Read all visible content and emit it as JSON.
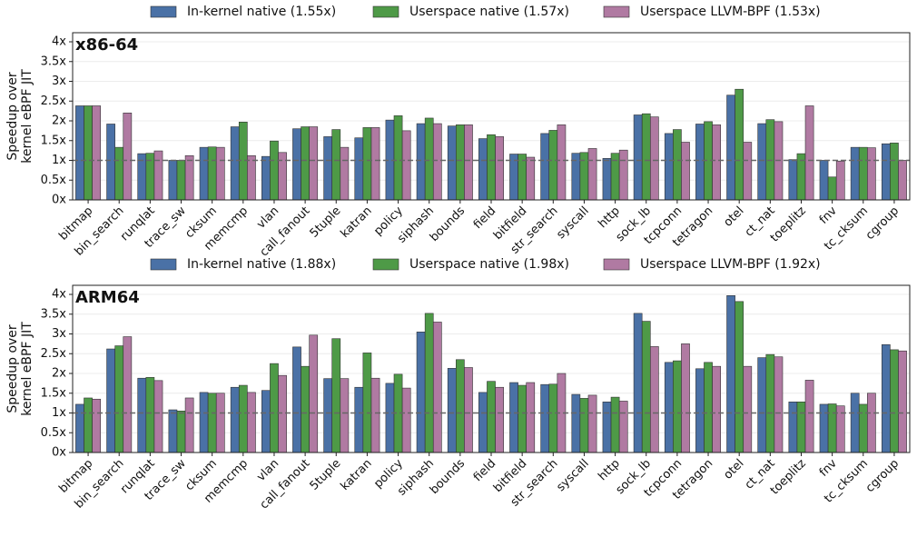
{
  "chart_data": [
    {
      "type": "bar",
      "title": "x86-64",
      "ylabel": [
        "Speedup over",
        "kernel eBPF JIT"
      ],
      "categories": [
        "bitmap",
        "bin_search",
        "runqlat",
        "trace_sw",
        "cksum",
        "memcmp",
        "vlan",
        "call_fanout",
        "5tuple",
        "katran",
        "policy",
        "siphash",
        "bounds",
        "field",
        "bitfield",
        "str_search",
        "syscall",
        "http",
        "sock_lb",
        "tcpconn",
        "tetragon",
        "otel",
        "ct_nat",
        "toeplitz",
        "fnv",
        "tc_cksum",
        "cgroup"
      ],
      "series": [
        {
          "name": "In-kernel native (1.55x)",
          "color": "#4a71a6",
          "values": [
            2.38,
            1.92,
            1.17,
            1.0,
            1.33,
            1.85,
            1.1,
            1.8,
            1.6,
            1.57,
            2.02,
            1.93,
            1.87,
            1.55,
            1.16,
            1.68,
            1.18,
            1.05,
            2.15,
            1.68,
            1.92,
            2.65,
            1.93,
            1.02,
            1.0,
            1.33,
            1.42
          ]
        },
        {
          "name": "Userspace native (1.57x)",
          "color": "#4e9a47",
          "values": [
            2.38,
            1.33,
            1.18,
            1.0,
            1.34,
            1.97,
            1.49,
            1.85,
            1.78,
            1.83,
            2.13,
            2.07,
            1.9,
            1.65,
            1.16,
            1.76,
            1.2,
            1.18,
            2.18,
            1.78,
            1.98,
            2.8,
            2.03,
            1.17,
            0.58,
            1.33,
            1.44
          ]
        },
        {
          "name": "Userspace LLVM-BPF (1.53x)",
          "color": "#b07aa2",
          "values": [
            2.38,
            2.2,
            1.24,
            1.12,
            1.33,
            1.12,
            1.2,
            1.85,
            1.33,
            1.83,
            1.75,
            1.93,
            1.9,
            1.6,
            1.08,
            1.9,
            1.3,
            1.26,
            2.1,
            1.46,
            1.9,
            1.46,
            1.98,
            2.38,
            0.98,
            1.32,
            1.0
          ]
        }
      ],
      "ylim": [
        0,
        4.23
      ],
      "yticks": [
        {
          "value": 0,
          "label": "0x"
        },
        {
          "value": 0.5,
          "label": "0.5x"
        },
        {
          "value": 1,
          "label": "1x"
        },
        {
          "value": 1.5,
          "label": "1.5x"
        },
        {
          "value": 2,
          "label": "2x"
        },
        {
          "value": 2.5,
          "label": "2.5x"
        },
        {
          "value": 3,
          "label": "3x"
        },
        {
          "value": 3.5,
          "label": "3.5x"
        },
        {
          "value": 4,
          "label": "4x"
        }
      ],
      "grid": true,
      "reference_line": 1,
      "legend": "top"
    },
    {
      "type": "bar",
      "title": "ARM64",
      "ylabel": [
        "Speedup over",
        "kernel eBPF JIT"
      ],
      "categories": [
        "bitmap",
        "bin_search",
        "runqlat",
        "trace_sw",
        "cksum",
        "memcmp",
        "vlan",
        "call_fanout",
        "5tuple",
        "katran",
        "policy",
        "siphash",
        "bounds",
        "field",
        "bitfield",
        "str_search",
        "syscall",
        "http",
        "sock_lb",
        "tcpconn",
        "tetragon",
        "otel",
        "ct_nat",
        "toeplitz",
        "fnv",
        "tc_cksum",
        "cgroup"
      ],
      "series": [
        {
          "name": "In-kernel native (1.88x)",
          "color": "#4a71a6",
          "values": [
            1.22,
            2.62,
            1.88,
            1.08,
            1.52,
            1.65,
            1.57,
            2.67,
            1.87,
            1.65,
            1.75,
            3.05,
            2.13,
            1.52,
            1.77,
            1.72,
            1.47,
            1.28,
            3.52,
            2.28,
            2.12,
            3.97,
            2.4,
            1.28,
            1.22,
            1.5,
            2.73
          ]
        },
        {
          "name": "Userspace native (1.98x)",
          "color": "#4e9a47",
          "values": [
            1.38,
            2.7,
            1.9,
            1.05,
            1.5,
            1.7,
            2.25,
            2.18,
            2.88,
            2.52,
            1.98,
            3.52,
            2.35,
            1.8,
            1.7,
            1.73,
            1.37,
            1.4,
            3.32,
            2.32,
            2.28,
            3.82,
            2.48,
            1.28,
            1.23,
            1.22,
            2.6
          ]
        },
        {
          "name": "Userspace LLVM-BPF (1.92x)",
          "color": "#b07aa2",
          "values": [
            1.35,
            2.93,
            1.82,
            1.38,
            1.5,
            1.52,
            1.95,
            2.97,
            1.87,
            1.88,
            1.63,
            3.3,
            2.15,
            1.65,
            1.77,
            2.0,
            1.45,
            1.3,
            2.68,
            2.75,
            2.18,
            2.18,
            2.42,
            1.83,
            1.18,
            1.5,
            2.57
          ]
        }
      ],
      "ylim": [
        0,
        4.23
      ],
      "yticks": [
        {
          "value": 0,
          "label": "0x"
        },
        {
          "value": 0.5,
          "label": "0.5x"
        },
        {
          "value": 1,
          "label": "1x"
        },
        {
          "value": 1.5,
          "label": "1.5x"
        },
        {
          "value": 2,
          "label": "2x"
        },
        {
          "value": 2.5,
          "label": "2.5x"
        },
        {
          "value": 3,
          "label": "3x"
        },
        {
          "value": 3.5,
          "label": "3.5x"
        },
        {
          "value": 4,
          "label": "4x"
        }
      ],
      "grid": true,
      "reference_line": 1,
      "legend": "top"
    }
  ]
}
